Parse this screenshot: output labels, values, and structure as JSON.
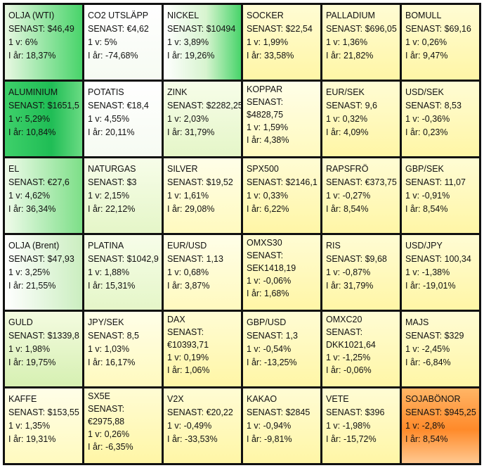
{
  "labels": {
    "senast": "SENAST:",
    "week": "1 v:",
    "year": "I år:"
  },
  "cells": [
    {
      "name": "OLJA (WTI)",
      "senast": "$46,49",
      "week": "6%",
      "year": "18,37%"
    },
    {
      "name": "CO2 UTSLÄPP",
      "senast": "€4,62",
      "week": "5%",
      "year": "-74,68%"
    },
    {
      "name": "NICKEL",
      "senast": "$10494",
      "week": "3,89%",
      "year": "19,26%"
    },
    {
      "name": "SOCKER",
      "senast": "$22,54",
      "week": "1,99%",
      "year": "33,58%"
    },
    {
      "name": "PALLADIUM",
      "senast": "$696,05",
      "week": "1,36%",
      "year": "21,82%"
    },
    {
      "name": "BOMULL",
      "senast": "$69,16",
      "week": "0,26%",
      "year": "9,47%"
    },
    {
      "name": "ALUMINIUM",
      "senast": "$1651,5",
      "week": "5,29%",
      "year": "10,84%"
    },
    {
      "name": "POTATIS",
      "senast": "€18,4",
      "week": "4,55%",
      "year": "20,11%"
    },
    {
      "name": "ZINK",
      "senast": "$2282,25",
      "week": "2,03%",
      "year": "31,79%"
    },
    {
      "name": "KOPPAR",
      "senast": "$4828,75",
      "week": "1,59%",
      "year": "4,38%"
    },
    {
      "name": "EUR/SEK",
      "senast": "9,6",
      "week": "0,32%",
      "year": "4,09%"
    },
    {
      "name": "USD/SEK",
      "senast": "8,53",
      "week": "-0,36%",
      "year": "0,23%"
    },
    {
      "name": "EL",
      "senast": "€27,6",
      "week": "4,62%",
      "year": "36,34%"
    },
    {
      "name": "NATURGAS",
      "senast": "$3",
      "week": "2,15%",
      "year": "22,12%"
    },
    {
      "name": "SILVER",
      "senast": "$19,52",
      "week": "1,61%",
      "year": "29,08%"
    },
    {
      "name": "SPX500",
      "senast": "$2146,1",
      "week": "0,33%",
      "year": "6,22%"
    },
    {
      "name": "RAPSFRÖ",
      "senast": "€373,75",
      "week": "-0,27%",
      "year": "8,54%"
    },
    {
      "name": "GBP/SEK",
      "senast": "11,07",
      "week": "-0,91%",
      "year": "8,54%"
    },
    {
      "name": "OLJA (Brent)",
      "senast": "$47,93",
      "week": "3,25%",
      "year": "21,55%"
    },
    {
      "name": "PLATINA",
      "senast": "$1042,9",
      "week": "1,88%",
      "year": "15,31%"
    },
    {
      "name": "EUR/USD",
      "senast": "1,13",
      "week": "0,68%",
      "year": "3,87%"
    },
    {
      "name": "OMXS30",
      "senast": "SEK1418,19",
      "week": "-0,06%",
      "year": "1,68%"
    },
    {
      "name": "RIS",
      "senast": "$9,68",
      "week": "-0,87%",
      "year": "31,79%"
    },
    {
      "name": "USD/JPY",
      "senast": "100,34",
      "week": "-1,38%",
      "year": "-19,01%"
    },
    {
      "name": "GULD",
      "senast": "$1339,8",
      "week": "1,98%",
      "year": "19,75%"
    },
    {
      "name": "JPY/SEK",
      "senast": "8,5",
      "week": "1,03%",
      "year": "16,17%"
    },
    {
      "name": "DAX",
      "senast": "€10393,71",
      "week": "0,19%",
      "year": "1,06%"
    },
    {
      "name": "GBP/USD",
      "senast": "1,3",
      "week": "-0,54%",
      "year": "-13,25%"
    },
    {
      "name": "OMXC20",
      "senast": "DKK1021,64",
      "week": "-1,25%",
      "year": "-0,06%"
    },
    {
      "name": "MAJS",
      "senast": "$329",
      "week": "-2,45%",
      "year": "-6,84%"
    },
    {
      "name": "KAFFE",
      "senast": "$153,55",
      "week": "1,35%",
      "year": "19,31%"
    },
    {
      "name": "SX5E",
      "senast": "€2975,88",
      "week": "0,26%",
      "year": "-6,35%"
    },
    {
      "name": "V2X",
      "senast": "€20,22",
      "week": "-0,49%",
      "year": "-33,53%"
    },
    {
      "name": "KAKAO",
      "senast": "$2845",
      "week": "-0,94%",
      "year": "-9,81%"
    },
    {
      "name": "VETE",
      "senast": "$396",
      "week": "-1,98%",
      "year": "-15,72%"
    },
    {
      "name": "SOJABÖNOR",
      "senast": "$945,25",
      "week": "-2,8%",
      "year": "8,54%"
    }
  ],
  "colors": {
    "grid_border": "#111111",
    "positive_strong": "#1fbd55",
    "neutral": "#fff6a6",
    "negative_strong": "#ff8a2a"
  }
}
